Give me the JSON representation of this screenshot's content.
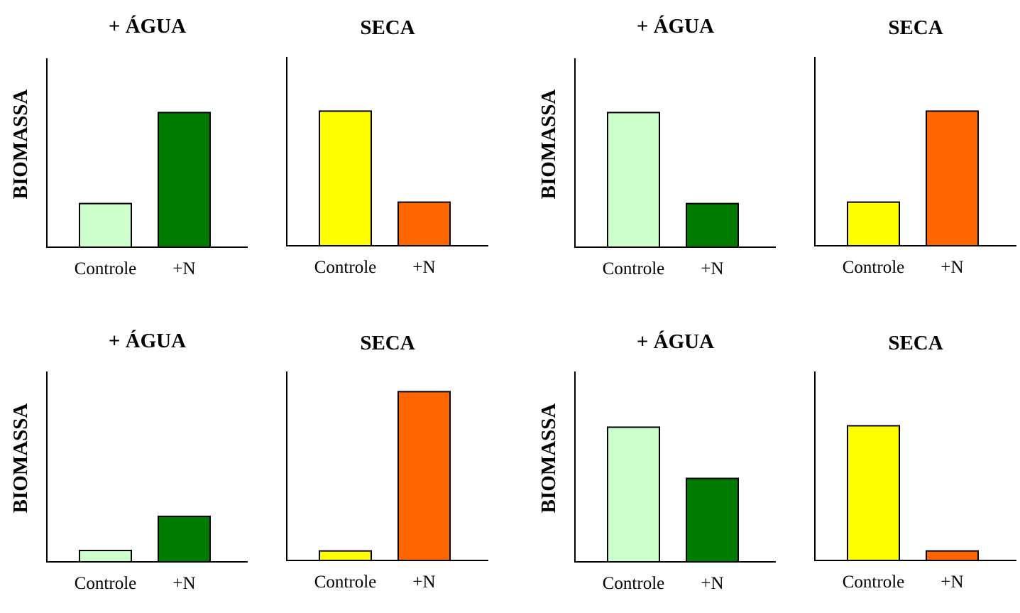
{
  "chart_data": [
    {
      "type": "bar",
      "title": "+ ÁGUA",
      "ylabel": "BIOMASSA",
      "categories": [
        "Controle",
        "+N"
      ],
      "values": [
        23,
        71
      ],
      "colors": [
        "#ccffcc",
        "#007a00"
      ],
      "ylim": [
        0,
        100
      ]
    },
    {
      "type": "bar",
      "title": "SECA",
      "ylabel": "",
      "categories": [
        "Controle",
        "+N"
      ],
      "values": [
        71,
        23
      ],
      "colors": [
        "#ffff00",
        "#ff6600"
      ],
      "ylim": [
        0,
        100
      ]
    },
    {
      "type": "bar",
      "title": "+ ÁGUA",
      "ylabel": "BIOMASSA",
      "categories": [
        "Controle",
        "+N"
      ],
      "values": [
        71,
        23
      ],
      "colors": [
        "#ccffcc",
        "#007a00"
      ],
      "ylim": [
        0,
        100
      ]
    },
    {
      "type": "bar",
      "title": "SECA",
      "ylabel": "",
      "categories": [
        "Controle",
        "+N"
      ],
      "values": [
        23,
        71
      ],
      "colors": [
        "#ffff00",
        "#ff6600"
      ],
      "ylim": [
        0,
        100
      ]
    },
    {
      "type": "bar",
      "title": "+ ÁGUA",
      "ylabel": "BIOMASSA",
      "categories": [
        "Controle",
        "+N"
      ],
      "values": [
        6,
        24
      ],
      "colors": [
        "#ccffcc",
        "#007a00"
      ],
      "ylim": [
        0,
        100
      ]
    },
    {
      "type": "bar",
      "title": "SECA",
      "ylabel": "",
      "categories": [
        "Controle",
        "+N"
      ],
      "values": [
        5,
        89
      ],
      "colors": [
        "#ffff00",
        "#ff6600"
      ],
      "ylim": [
        0,
        100
      ]
    },
    {
      "type": "bar",
      "title": "+ ÁGUA",
      "ylabel": "BIOMASSA",
      "categories": [
        "Controle",
        "+N"
      ],
      "values": [
        71,
        44
      ],
      "colors": [
        "#ccffcc",
        "#007a00"
      ],
      "ylim": [
        0,
        100
      ]
    },
    {
      "type": "bar",
      "title": "SECA",
      "ylabel": "",
      "categories": [
        "Controle",
        "+N"
      ],
      "values": [
        71,
        5
      ],
      "colors": [
        "#ffff00",
        "#ff6600"
      ],
      "ylim": [
        0,
        100
      ]
    }
  ]
}
